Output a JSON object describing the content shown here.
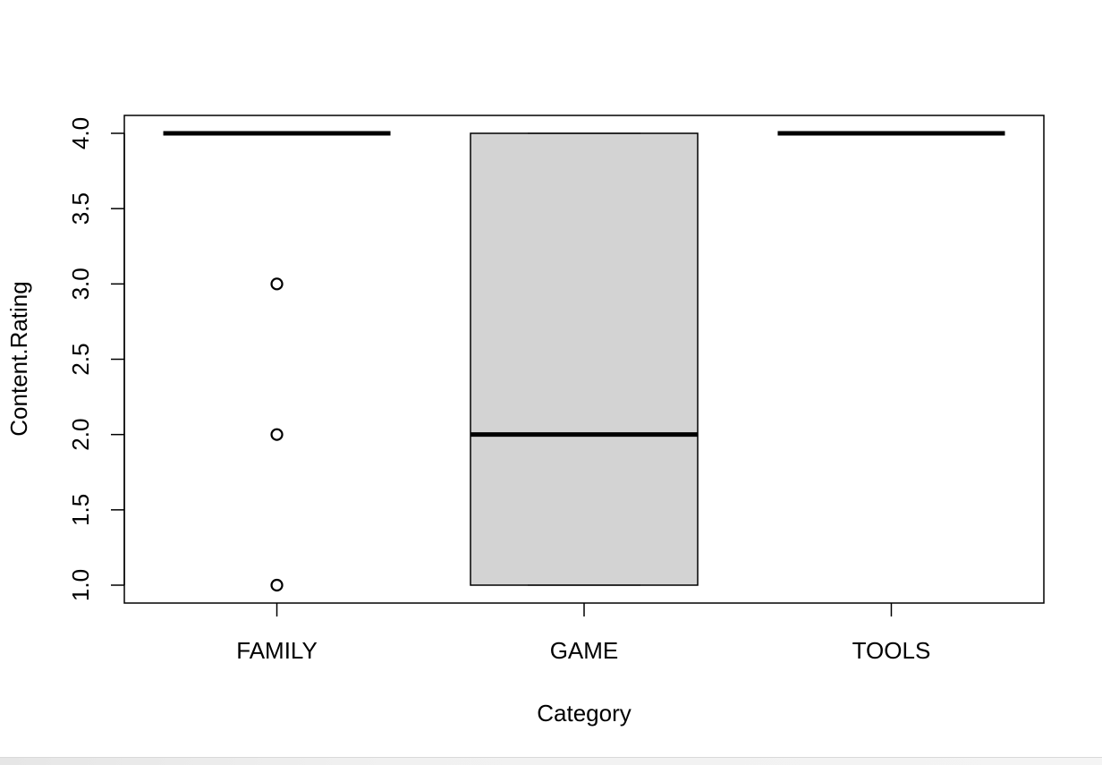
{
  "chart_data": {
    "type": "box",
    "title": "",
    "xlabel": "Category",
    "ylabel": "Content.Rating",
    "categories": [
      "FAMILY",
      "GAME",
      "TOOLS"
    ],
    "ylim": [
      1.0,
      4.0
    ],
    "yticks": [
      1.0,
      1.5,
      2.0,
      2.5,
      3.0,
      3.5,
      4.0
    ],
    "ytick_labels": [
      "1.0",
      "1.5",
      "2.0",
      "2.5",
      "3.0",
      "3.5",
      "4.0"
    ],
    "boxes": [
      {
        "category": "FAMILY",
        "min": 4.0,
        "q1": 4.0,
        "median": 4.0,
        "q3": 4.0,
        "max": 4.0,
        "outliers": [
          3.0,
          2.0,
          1.0
        ]
      },
      {
        "category": "GAME",
        "min": 1.0,
        "q1": 1.0,
        "median": 2.0,
        "q3": 4.0,
        "max": 4.0,
        "outliers": []
      },
      {
        "category": "TOOLS",
        "min": 4.0,
        "q1": 4.0,
        "median": 4.0,
        "q3": 4.0,
        "max": 4.0,
        "outliers": []
      }
    ],
    "box_fill": "#d3d3d3",
    "line_color": "#000000",
    "grid": false,
    "legend": "none"
  }
}
